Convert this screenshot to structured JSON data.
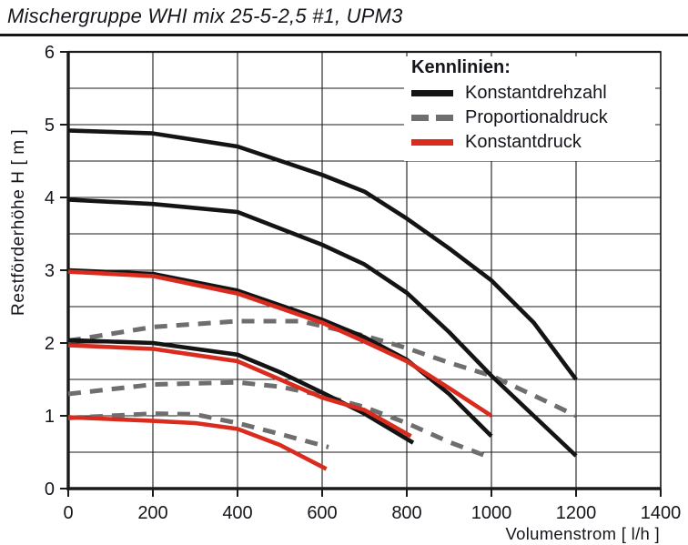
{
  "page": {
    "title": "Mischergruppe WHI mix 25-5-2,5 #1, UPM3"
  },
  "legend": {
    "title": "Kennlinien:",
    "items": [
      {
        "label": "Konstantdrehzahl",
        "color": "#141414",
        "style": "solid"
      },
      {
        "label": "Proportionaldruck",
        "color": "#6e6e6e",
        "style": "dashed"
      },
      {
        "label": "Konstantdruck",
        "color": "#d92b1e",
        "style": "solid"
      }
    ]
  },
  "colors": {
    "black": "#141414",
    "red": "#d92b1e",
    "gray": "#6e6e6e",
    "grid": "#1a1a1a",
    "text": "#15151c",
    "background": "#ffffff"
  },
  "chart_data": {
    "type": "line",
    "title": "Mischergruppe WHI mix 25-5-2,5 #1, UPM3",
    "xlabel": "Volumenstrom [ l/h ]",
    "ylabel": "Restförderhöhe H [ m ]",
    "xlim": [
      0,
      1400
    ],
    "ylim": [
      0,
      6
    ],
    "x_ticks": [
      0,
      200,
      400,
      600,
      800,
      1000,
      1200,
      1400
    ],
    "y_ticks": [
      0,
      1,
      2,
      3,
      4,
      5,
      6
    ],
    "x_grid_step": 200,
    "y_grid_step": 0.5,
    "grid": true,
    "legend_position": "top-right-inside",
    "series": [
      {
        "name": "Proportionaldruck 1",
        "group": "Proportionaldruck",
        "color": "#6e6e6e",
        "dash": true,
        "width": 5,
        "points": [
          [
            0,
            2.03
          ],
          [
            200,
            2.22
          ],
          [
            400,
            2.3
          ],
          [
            550,
            2.3
          ],
          [
            700,
            2.1
          ],
          [
            800,
            1.93
          ],
          [
            900,
            1.73
          ],
          [
            1000,
            1.55
          ],
          [
            1100,
            1.28
          ],
          [
            1200,
            1.0
          ]
        ]
      },
      {
        "name": "Proportionaldruck 2",
        "group": "Proportionaldruck",
        "color": "#6e6e6e",
        "dash": true,
        "width": 5,
        "points": [
          [
            0,
            1.3
          ],
          [
            200,
            1.43
          ],
          [
            400,
            1.46
          ],
          [
            500,
            1.4
          ],
          [
            600,
            1.28
          ],
          [
            700,
            1.12
          ],
          [
            800,
            0.9
          ],
          [
            900,
            0.64
          ],
          [
            1000,
            0.42
          ]
        ]
      },
      {
        "name": "Proportionaldruck 3",
        "group": "Proportionaldruck",
        "color": "#6e6e6e",
        "dash": true,
        "width": 5,
        "points": [
          [
            0,
            0.97
          ],
          [
            200,
            1.03
          ],
          [
            300,
            1.02
          ],
          [
            400,
            0.9
          ],
          [
            500,
            0.75
          ],
          [
            615,
            0.57
          ]
        ]
      },
      {
        "name": "Konstantdrehzahl 1",
        "group": "Konstantdrehzahl",
        "color": "#141414",
        "dash": false,
        "width": 4.6,
        "points": [
          [
            0,
            4.92
          ],
          [
            200,
            4.88
          ],
          [
            400,
            4.7
          ],
          [
            600,
            4.31
          ],
          [
            700,
            4.08
          ],
          [
            800,
            3.71
          ],
          [
            900,
            3.3
          ],
          [
            1000,
            2.86
          ],
          [
            1100,
            2.28
          ],
          [
            1200,
            1.5
          ]
        ]
      },
      {
        "name": "Konstantdrehzahl 2",
        "group": "Konstantdrehzahl",
        "color": "#141414",
        "dash": false,
        "width": 4.6,
        "points": [
          [
            0,
            3.97
          ],
          [
            200,
            3.91
          ],
          [
            400,
            3.8
          ],
          [
            600,
            3.35
          ],
          [
            700,
            3.08
          ],
          [
            800,
            2.69
          ],
          [
            900,
            2.15
          ],
          [
            1000,
            1.55
          ],
          [
            1100,
            1.0
          ],
          [
            1200,
            0.45
          ]
        ]
      },
      {
        "name": "Konstantdrehzahl 3",
        "group": "Konstantdrehzahl",
        "color": "#141414",
        "dash": false,
        "width": 4.6,
        "points": [
          [
            0,
            3.0
          ],
          [
            200,
            2.95
          ],
          [
            400,
            2.72
          ],
          [
            600,
            2.32
          ],
          [
            700,
            2.08
          ],
          [
            800,
            1.77
          ],
          [
            900,
            1.3
          ],
          [
            1000,
            0.72
          ]
        ]
      },
      {
        "name": "Konstantdrehzahl 4",
        "group": "Konstantdrehzahl",
        "color": "#141414",
        "dash": false,
        "width": 4.6,
        "points": [
          [
            0,
            2.04
          ],
          [
            200,
            2.0
          ],
          [
            400,
            1.84
          ],
          [
            500,
            1.6
          ],
          [
            600,
            1.32
          ],
          [
            700,
            1.03
          ],
          [
            815,
            0.63
          ]
        ]
      },
      {
        "name": "Konstantdruck 1",
        "group": "Konstantdruck",
        "color": "#d92b1e",
        "dash": false,
        "width": 4.6,
        "points": [
          [
            0,
            2.98
          ],
          [
            200,
            2.92
          ],
          [
            400,
            2.68
          ],
          [
            600,
            2.28
          ],
          [
            700,
            2.02
          ],
          [
            800,
            1.75
          ],
          [
            900,
            1.38
          ],
          [
            1000,
            1.0
          ]
        ]
      },
      {
        "name": "Konstantdruck 2",
        "group": "Konstantdruck",
        "color": "#d92b1e",
        "dash": false,
        "width": 4.6,
        "points": [
          [
            0,
            1.97
          ],
          [
            200,
            1.92
          ],
          [
            400,
            1.75
          ],
          [
            500,
            1.5
          ],
          [
            600,
            1.25
          ],
          [
            700,
            1.08
          ],
          [
            810,
            0.72
          ]
        ]
      },
      {
        "name": "Konstantdruck 3",
        "group": "Konstantdruck",
        "color": "#d92b1e",
        "dash": false,
        "width": 4.6,
        "points": [
          [
            0,
            0.98
          ],
          [
            200,
            0.93
          ],
          [
            300,
            0.9
          ],
          [
            400,
            0.82
          ],
          [
            500,
            0.6
          ],
          [
            610,
            0.27
          ]
        ]
      }
    ]
  }
}
